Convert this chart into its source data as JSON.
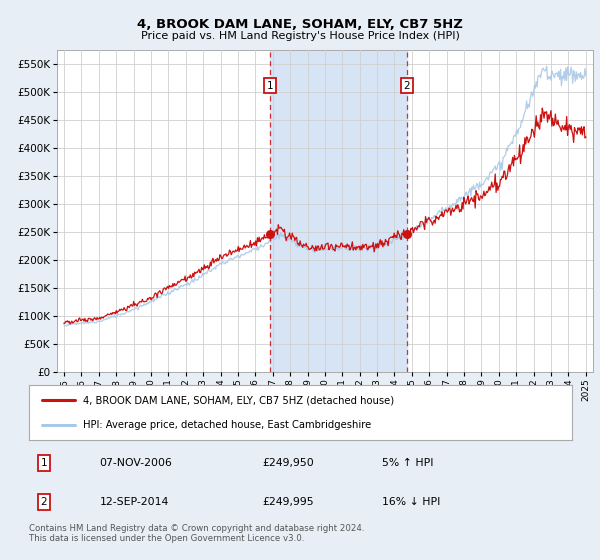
{
  "title": "4, BROOK DAM LANE, SOHAM, ELY, CB7 5HZ",
  "subtitle": "Price paid vs. HM Land Registry's House Price Index (HPI)",
  "hpi_label": "HPI: Average price, detached house, East Cambridgeshire",
  "property_label": "4, BROOK DAM LANE, SOHAM, ELY, CB7 5HZ (detached house)",
  "hpi_color": "#a8c8e8",
  "property_color": "#cc1111",
  "annotation1_date": "07-NOV-2006",
  "annotation1_price": "£249,950",
  "annotation1_hpi": "5% ↑ HPI",
  "annotation2_date": "12-SEP-2014",
  "annotation2_price": "£249,995",
  "annotation2_hpi": "16% ↓ HPI",
  "vline1_x": 2006.85,
  "vline2_x": 2014.72,
  "copyright": "Contains HM Land Registry data © Crown copyright and database right 2024.\nThis data is licensed under the Open Government Licence v3.0.",
  "ylim": [
    0,
    575000
  ],
  "xlim": [
    1994.6,
    2025.4
  ],
  "bg_color": "#e8eef5",
  "plot_bg": "#ffffff",
  "shade_color": "#d6e4f5",
  "annot_box_color": "#cc1111"
}
